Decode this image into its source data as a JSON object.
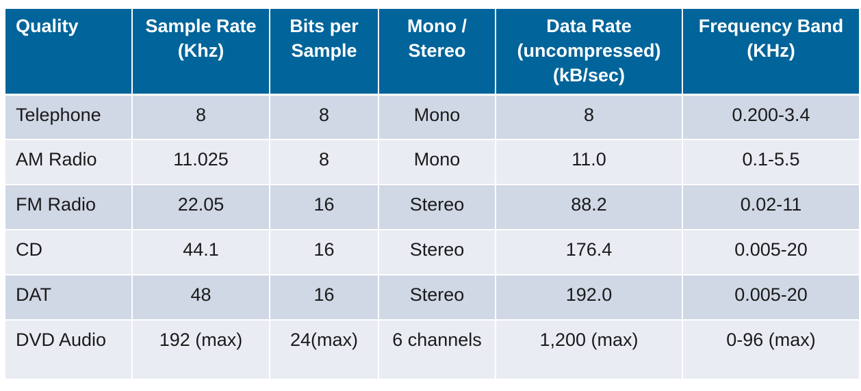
{
  "table": {
    "headers": [
      "Quality",
      "Sample Rate (Khz)",
      "Bits per Sample",
      "Mono / Stereo",
      "Data Rate (uncompressed) (kB/sec)",
      "Frequency Band (KHz)"
    ],
    "rows": [
      [
        "Telephone",
        "8",
        "8",
        "Mono",
        "8",
        "0.200-3.4"
      ],
      [
        "AM Radio",
        "11.025",
        "8",
        "Mono",
        "11.0",
        "0.1-5.5"
      ],
      [
        "FM Radio",
        "22.05",
        "16",
        "Stereo",
        "88.2",
        "0.02-11"
      ],
      [
        "CD",
        "44.1",
        "16",
        "Stereo",
        "176.4",
        "0.005-20"
      ],
      [
        "DAT",
        "48",
        "16",
        "Stereo",
        "192.0",
        "0.005-20"
      ],
      [
        "DVD Audio",
        "192 (max)",
        "24(max)",
        "6 channels",
        "1,200 (max)",
        "0-96 (max)"
      ]
    ]
  },
  "colors": {
    "header_bg": "#01649a",
    "header_text": "#ffffff",
    "row_dark_bg": "#d0d7e5",
    "row_light_bg": "#e9ecf3"
  }
}
